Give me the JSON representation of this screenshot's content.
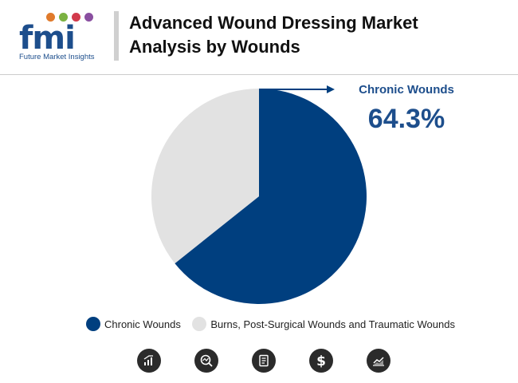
{
  "header": {
    "logo_text": "fmi",
    "logo_subtitle": "Future Market Insights",
    "title_line1": "Advanced Wound Dressing Market",
    "title_line2": "Analysis by Wounds",
    "colors": {
      "brand": "#1d4e8c",
      "dot1": "#e07a2b",
      "dot2": "#7bb241",
      "dot3": "#d23a4b",
      "dot4": "#8a4fa0"
    }
  },
  "chart_data": {
    "type": "pie",
    "categories": [
      "Chronic Wounds",
      "Burns, Post-Surgical Wounds and Traumatic Wounds"
    ],
    "values": [
      64.3,
      35.7
    ],
    "colors": [
      "#003f7f",
      "#e2e2e2"
    ],
    "legend_position": "bottom",
    "callout": {
      "label": "Chronic Wounds",
      "value": "64.3%"
    }
  },
  "footer_icons": [
    "bar-chart-icon",
    "magnifier-icon",
    "document-icon",
    "dollar-icon",
    "trend-chart-icon"
  ]
}
